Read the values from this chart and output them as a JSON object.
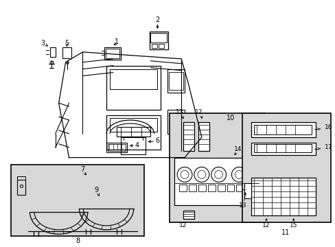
{
  "background_color": "#ffffff",
  "line_color": "#000000",
  "gray_fill": "#d8d8d8",
  "fig_width": 4.89,
  "fig_height": 3.6,
  "dpi": 100
}
